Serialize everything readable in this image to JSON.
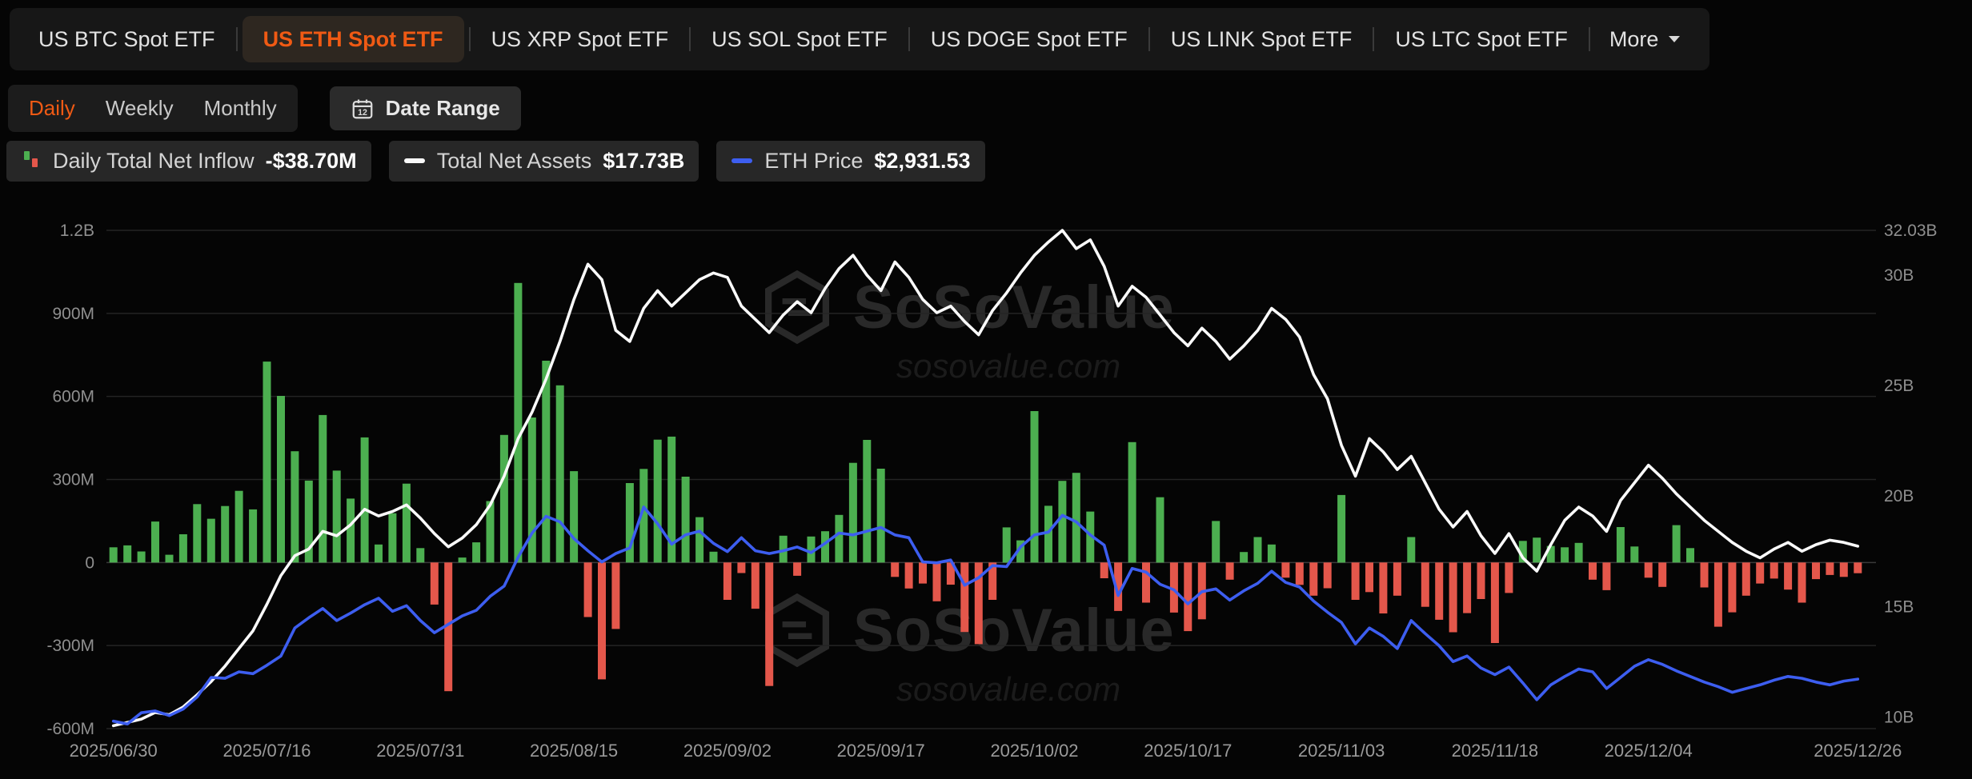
{
  "page": {
    "background": "#050505",
    "accent": "#f05a14"
  },
  "header": {
    "tabs": [
      {
        "label": "US BTC Spot ETF",
        "active": false
      },
      {
        "label": "US ETH Spot ETF",
        "active": true
      },
      {
        "label": "US XRP Spot ETF",
        "active": false
      },
      {
        "label": "US SOL Spot ETF",
        "active": false
      },
      {
        "label": "US DOGE Spot ETF",
        "active": false
      },
      {
        "label": "US LINK Spot ETF",
        "active": false
      },
      {
        "label": "US LTC Spot ETF",
        "active": false
      }
    ],
    "more_label": "More"
  },
  "controls": {
    "periods": [
      {
        "label": "Daily",
        "active": true
      },
      {
        "label": "Weekly",
        "active": false
      },
      {
        "label": "Monthly",
        "active": false
      }
    ],
    "date_range_label": "Date Range"
  },
  "legend": {
    "items": [
      {
        "label": "Daily Total Net Inflow",
        "value": "-$38.70M",
        "icon": "inflow-bars-icon"
      },
      {
        "label": "Total Net Assets",
        "value": "$17.73B",
        "icon": "assets-dash-icon",
        "color": "#fafafa"
      },
      {
        "label": "ETH Price",
        "value": "$2,931.53",
        "icon": "eth-dash-icon",
        "color": "#3d5ef0"
      }
    ]
  },
  "watermark": {
    "name": "SoSoValue",
    "domain": "sosovalue.com"
  },
  "icons": [
    "calendar-icon",
    "chevron-down-icon",
    "inflow-bars-icon",
    "assets-dash-icon",
    "eth-dash-icon",
    "hexagon-logo-icon"
  ],
  "chart_data": {
    "type": "bar",
    "title": "",
    "grid": true,
    "legend_position": "top",
    "x": [
      "2025/06/30",
      "2025/07/01",
      "2025/07/02",
      "2025/07/03",
      "2025/07/07",
      "2025/07/08",
      "2025/07/09",
      "2025/07/10",
      "2025/07/11",
      "2025/07/14",
      "2025/07/15",
      "2025/07/16",
      "2025/07/17",
      "2025/07/18",
      "2025/07/21",
      "2025/07/22",
      "2025/07/23",
      "2025/07/24",
      "2025/07/25",
      "2025/07/28",
      "2025/07/29",
      "2025/07/30",
      "2025/07/31",
      "2025/08/01",
      "2025/08/04",
      "2025/08/05",
      "2025/08/06",
      "2025/08/07",
      "2025/08/08",
      "2025/08/11",
      "2025/08/12",
      "2025/08/13",
      "2025/08/14",
      "2025/08/15",
      "2025/08/18",
      "2025/08/19",
      "2025/08/20",
      "2025/08/21",
      "2025/08/22",
      "2025/08/25",
      "2025/08/26",
      "2025/08/27",
      "2025/08/28",
      "2025/08/29",
      "2025/09/02",
      "2025/09/03",
      "2025/09/04",
      "2025/09/05",
      "2025/09/08",
      "2025/09/09",
      "2025/09/10",
      "2025/09/11",
      "2025/09/12",
      "2025/09/15",
      "2025/09/16",
      "2025/09/17",
      "2025/09/18",
      "2025/09/19",
      "2025/09/22",
      "2025/09/23",
      "2025/09/24",
      "2025/09/25",
      "2025/09/26",
      "2025/09/29",
      "2025/09/30",
      "2025/10/01",
      "2025/10/02",
      "2025/10/03",
      "2025/10/06",
      "2025/10/07",
      "2025/10/08",
      "2025/10/09",
      "2025/10/10",
      "2025/10/13",
      "2025/10/14",
      "2025/10/15",
      "2025/10/16",
      "2025/10/17",
      "2025/10/20",
      "2025/10/21",
      "2025/10/22",
      "2025/10/23",
      "2025/10/24",
      "2025/10/27",
      "2025/10/28",
      "2025/10/29",
      "2025/10/30",
      "2025/10/31",
      "2025/11/03",
      "2025/11/04",
      "2025/11/05",
      "2025/11/06",
      "2025/11/07",
      "2025/11/10",
      "2025/11/11",
      "2025/11/12",
      "2025/11/13",
      "2025/11/14",
      "2025/11/17",
      "2025/11/18",
      "2025/11/19",
      "2025/11/20",
      "2025/11/21",
      "2025/11/24",
      "2025/11/25",
      "2025/11/26",
      "2025/11/28",
      "2025/12/01",
      "2025/12/02",
      "2025/12/03",
      "2025/12/04",
      "2025/12/05",
      "2025/12/08",
      "2025/12/09",
      "2025/12/10",
      "2025/12/11",
      "2025/12/12",
      "2025/12/15",
      "2025/12/16",
      "2025/12/17",
      "2025/12/18",
      "2025/12/19",
      "2025/12/22",
      "2025/12/23",
      "2025/12/24",
      "2025/12/26"
    ],
    "series": [
      {
        "name": "Daily Total Net Inflow",
        "kind": "bar",
        "axis": "left",
        "unit": "USD millions",
        "color_positive": "#4caf50",
        "color_negative": "#e4574b",
        "values": [
          55,
          62,
          40,
          148,
          28,
          102,
          211,
          158,
          204,
          259,
          192,
          726,
          602,
          402,
          296,
          533,
          332,
          231,
          452,
          65,
          178,
          285,
          52,
          -152,
          -465,
          18,
          73,
          222,
          461,
          1010,
          524,
          729,
          640,
          330,
          -197,
          -422,
          -240,
          287,
          338,
          444,
          455,
          310,
          164,
          39,
          -135,
          -38,
          -167,
          -446,
          97,
          -48,
          94,
          113,
          172,
          360,
          443,
          339,
          -52,
          -94,
          -76,
          -140,
          -80,
          -251,
          -295,
          -135,
          127,
          80,
          547,
          205,
          295,
          324,
          184,
          -57,
          -175,
          435,
          -145,
          236,
          -181,
          -248,
          -205,
          150,
          -62,
          38,
          92,
          65,
          -55,
          -81,
          -120,
          -93,
          244,
          -135,
          -107,
          -184,
          -120,
          92,
          -160,
          -207,
          -252,
          -183,
          -132,
          -291,
          -110,
          78,
          90,
          60,
          55,
          71,
          -62,
          -100,
          128,
          58,
          -55,
          -88,
          135,
          52,
          -90,
          -232,
          -180,
          -120,
          -76,
          -58,
          -98,
          -145,
          -60,
          -45,
          -52,
          -38.7
        ]
      },
      {
        "name": "Total Net Assets",
        "kind": "line",
        "axis": "right",
        "unit": "USD billions",
        "color": "#fafafa",
        "values": [
          9.6,
          9.75,
          9.9,
          10.2,
          10.1,
          10.45,
          11.0,
          11.6,
          12.3,
          13.1,
          13.9,
          15.1,
          16.4,
          17.3,
          17.6,
          18.4,
          18.2,
          18.7,
          19.4,
          19.1,
          19.3,
          19.6,
          19.0,
          18.3,
          17.7,
          18.1,
          18.7,
          19.6,
          20.9,
          22.6,
          23.8,
          25.3,
          27.0,
          28.9,
          30.5,
          29.8,
          27.5,
          27.0,
          28.5,
          29.3,
          28.6,
          29.2,
          29.8,
          30.1,
          29.9,
          28.6,
          28.0,
          27.4,
          28.2,
          28.8,
          28.3,
          29.4,
          30.3,
          30.9,
          30.0,
          29.3,
          30.6,
          29.9,
          28.9,
          28.3,
          28.6,
          27.9,
          27.3,
          28.4,
          29.2,
          30.1,
          30.9,
          31.5,
          32.03,
          31.2,
          31.6,
          30.4,
          28.6,
          29.5,
          29.0,
          28.2,
          27.4,
          26.8,
          27.6,
          27.0,
          26.2,
          26.8,
          27.5,
          28.5,
          28.0,
          27.2,
          25.5,
          24.4,
          22.3,
          20.9,
          22.6,
          22.0,
          21.2,
          21.8,
          20.6,
          19.4,
          18.6,
          19.3,
          18.2,
          17.4,
          18.3,
          17.2,
          16.6,
          17.8,
          18.9,
          19.5,
          19.1,
          18.4,
          19.8,
          20.6,
          21.4,
          20.8,
          20.1,
          19.5,
          18.9,
          18.4,
          17.9,
          17.5,
          17.2,
          17.6,
          17.9,
          17.5,
          17.8,
          18.0,
          17.9,
          17.73
        ]
      },
      {
        "name": "ETH Price",
        "kind": "line",
        "axis": "eth_hidden",
        "unit": "USD",
        "color": "#3d5ef0",
        "values": [
          2480,
          2450,
          2570,
          2590,
          2540,
          2610,
          2740,
          2950,
          2940,
          3010,
          2990,
          3080,
          3180,
          3480,
          3590,
          3690,
          3560,
          3640,
          3730,
          3800,
          3660,
          3720,
          3560,
          3430,
          3520,
          3610,
          3670,
          3820,
          3930,
          4240,
          4500,
          4680,
          4620,
          4440,
          4310,
          4190,
          4280,
          4340,
          4780,
          4600,
          4380,
          4480,
          4520,
          4390,
          4300,
          4450,
          4310,
          4280,
          4310,
          4350,
          4290,
          4390,
          4500,
          4480,
          4520,
          4560,
          4480,
          4450,
          4190,
          4180,
          4210,
          3940,
          4020,
          4150,
          4140,
          4350,
          4480,
          4510,
          4690,
          4620,
          4480,
          4370,
          3830,
          4120,
          4080,
          3950,
          3890,
          3740,
          3870,
          3900,
          3780,
          3880,
          3960,
          4090,
          3970,
          3920,
          3770,
          3650,
          3540,
          3310,
          3480,
          3390,
          3260,
          3560,
          3420,
          3290,
          3120,
          3180,
          3050,
          2980,
          3060,
          2890,
          2710,
          2870,
          2960,
          3040,
          3010,
          2830,
          2950,
          3070,
          3140,
          3090,
          3020,
          2960,
          2900,
          2850,
          2790,
          2830,
          2870,
          2920,
          2960,
          2940,
          2900,
          2870,
          2910,
          2931.53
        ]
      }
    ],
    "left_axis": {
      "unit": "M",
      "min": -600,
      "max": 1200,
      "tick_labels": [
        "1.2B",
        "900M",
        "600M",
        "300M",
        "0",
        "-300M",
        "-600M"
      ],
      "tick_values": [
        1200,
        900,
        600,
        300,
        0,
        -300,
        -600
      ]
    },
    "right_axis": {
      "unit": "B",
      "min": 9.47,
      "max": 32.03,
      "tick_labels": [
        "32.03B",
        "30B",
        "25B",
        "20B",
        "15B",
        "10B"
      ],
      "tick_values": [
        32.03,
        30,
        25,
        20,
        15,
        10
      ]
    },
    "eth_axis": {
      "min": 2400,
      "max": 7750,
      "visible": false
    },
    "x_tick_indices": [
      0,
      11,
      22,
      33,
      44,
      55,
      66,
      77,
      88,
      99,
      110,
      125
    ],
    "x_tick_labels": [
      "2025/06/30",
      "2025/07/16",
      "2025/07/31",
      "2025/08/15",
      "2025/09/02",
      "2025/09/17",
      "2025/10/02",
      "2025/10/17",
      "2025/11/03",
      "2025/11/18",
      "2025/12/04",
      "2025/12/26"
    ]
  }
}
